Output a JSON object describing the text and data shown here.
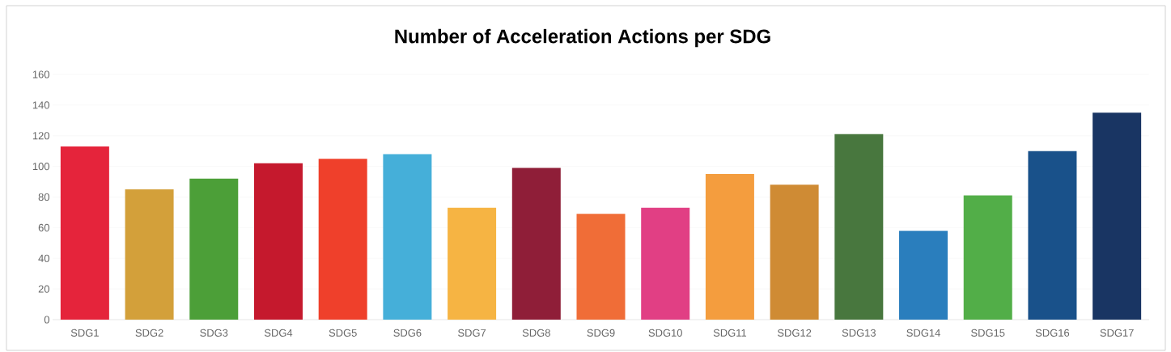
{
  "chart_data": {
    "type": "bar",
    "title": "Number of Acceleration Actions per SDG",
    "categories": [
      "SDG1",
      "SDG2",
      "SDG3",
      "SDG4",
      "SDG5",
      "SDG6",
      "SDG7",
      "SDG8",
      "SDG9",
      "SDG10",
      "SDG11",
      "SDG12",
      "SDG13",
      "SDG14",
      "SDG15",
      "SDG16",
      "SDG17"
    ],
    "values": [
      113,
      85,
      92,
      102,
      105,
      108,
      73,
      99,
      69,
      73,
      95,
      88,
      121,
      58,
      81,
      110,
      135
    ],
    "colors": [
      "#e5243b",
      "#d3a03a",
      "#4c9f38",
      "#c5192d",
      "#ef402b",
      "#45afd9",
      "#f6b443",
      "#8f1e38",
      "#f06d37",
      "#e13f84",
      "#f49d3e",
      "#cf8b34",
      "#48773e",
      "#2a7ebd",
      "#52ae48",
      "#19518a",
      "#193563"
    ],
    "ylim": [
      0,
      160
    ],
    "yticks": [
      0,
      20,
      40,
      60,
      80,
      100,
      120,
      140,
      160
    ],
    "grid": "y"
  }
}
